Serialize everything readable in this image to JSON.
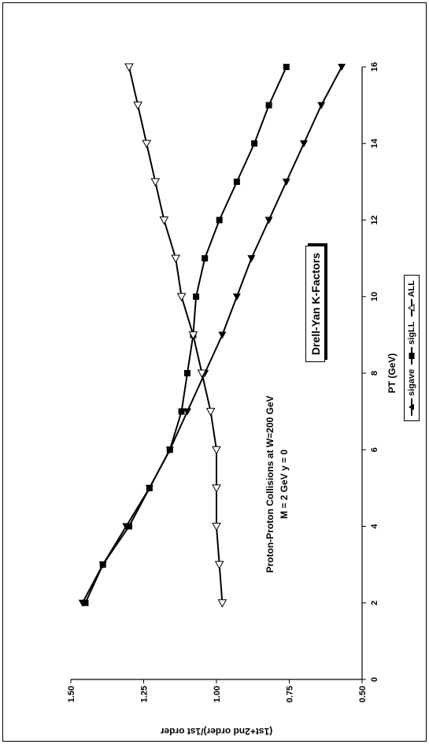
{
  "chart_data": {
    "type": "line",
    "title": "Drell-Yan K-Factors",
    "subtitle_lines": [
      "Proton-Proton Collisions at W=200 GeV",
      "M = 2 GeV  y = 0"
    ],
    "xlabel": "PT (GeV)",
    "ylabel": "(1st+2nd order)/1st order",
    "xlim": [
      0,
      16
    ],
    "ylim": [
      0.5,
      1.5
    ],
    "x_ticks": [
      "0",
      "2",
      "4",
      "6",
      "8",
      "10",
      "12",
      "14",
      "16"
    ],
    "y_ticks": [
      "0.50",
      "0.75",
      "1.00",
      "1.25",
      "1.50"
    ],
    "grid": false,
    "legend_position": "bottom",
    "x": [
      2,
      3,
      4,
      5,
      6,
      7,
      8,
      9,
      10,
      11,
      12,
      13,
      14,
      15,
      16
    ],
    "series": [
      {
        "name": "sigave",
        "marker": "filled-triangle",
        "values": [
          1.46,
          1.39,
          1.31,
          1.23,
          1.16,
          1.1,
          1.04,
          0.98,
          0.93,
          0.88,
          0.82,
          0.76,
          0.7,
          0.64,
          0.57
        ]
      },
      {
        "name": "sigLL",
        "marker": "filled-square",
        "values": [
          1.45,
          1.39,
          1.3,
          1.23,
          1.16,
          1.12,
          1.1,
          1.08,
          1.07,
          1.04,
          0.99,
          0.93,
          0.87,
          0.82,
          0.76
        ]
      },
      {
        "name": "ALL",
        "marker": "open-triangle",
        "values": [
          0.98,
          0.99,
          1.0,
          1.0,
          1.0,
          1.02,
          1.05,
          1.08,
          1.12,
          1.14,
          1.18,
          1.21,
          1.24,
          1.27,
          1.3
        ]
      }
    ]
  }
}
